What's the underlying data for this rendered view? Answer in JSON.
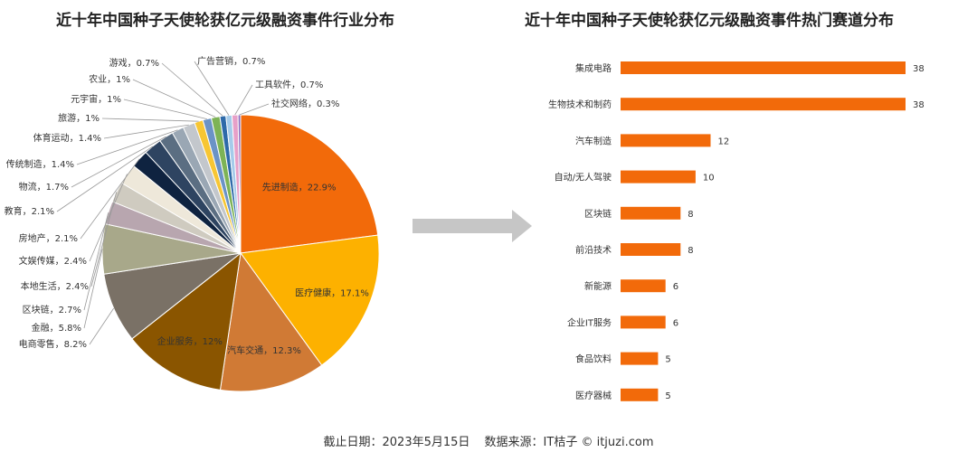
{
  "left_title": "近十年中国种子天使轮获亿元级融资事件行业分布",
  "right_title": "近十年中国种子天使轮获亿元级融资事件热门赛道分布",
  "footer": {
    "cutoff": "截止日期：2023年5月15日",
    "source": "数据来源：IT桔子 © itjuzi.com"
  },
  "chart_data": [
    {
      "type": "pie",
      "title": "近十年中国种子天使轮获亿元级融资事件行业分布",
      "unit": "%",
      "slices": [
        {
          "label": "先进制造",
          "value": 22.9,
          "color": "#F26A0A"
        },
        {
          "label": "医疗健康",
          "value": 17.1,
          "color": "#FDB100"
        },
        {
          "label": "汽车交通",
          "value": 12.3,
          "color": "#D07A35"
        },
        {
          "label": "企业服务",
          "value": 12,
          "color": "#8A5500"
        },
        {
          "label": "电商零售",
          "value": 8.2,
          "color": "#7A7166"
        },
        {
          "label": "金融",
          "value": 5.8,
          "color": "#A8A88A"
        },
        {
          "label": "区块链",
          "value": 2.7,
          "color": "#B8A6AF"
        },
        {
          "label": "本地生活",
          "value": 2.4,
          "color": "#CFCBC0"
        },
        {
          "label": "文娱传媒",
          "value": 2.4,
          "color": "#EEE8DA"
        },
        {
          "label": "房地产",
          "value": 2.1,
          "color": "#0F2340"
        },
        {
          "label": "教育",
          "value": 2.1,
          "color": "#2E4461"
        },
        {
          "label": "物流",
          "value": 1.7,
          "color": "#5B6E82"
        },
        {
          "label": "传统制造",
          "value": 1.4,
          "color": "#9AA7B4"
        },
        {
          "label": "体育运动",
          "value": 1.4,
          "color": "#C3C7CC"
        },
        {
          "label": "旅游",
          "value": 1,
          "color": "#F7C634"
        },
        {
          "label": "元宇宙",
          "value": 1,
          "color": "#6B93C6"
        },
        {
          "label": "农业",
          "value": 1,
          "color": "#7DB356"
        },
        {
          "label": "游戏",
          "value": 0.7,
          "color": "#2E6AA9"
        },
        {
          "label": "广告营销",
          "value": 0.7,
          "color": "#A5CBEA"
        },
        {
          "label": "工具软件",
          "value": 0.7,
          "color": "#E7A0C8"
        },
        {
          "label": "社交网络",
          "value": 0.3,
          "color": "#8E6BBF"
        }
      ]
    },
    {
      "type": "bar",
      "orientation": "horizontal",
      "title": "近十年中国种子天使轮获亿元级融资事件热门赛道分布",
      "categories": [
        "集成电路",
        "生物技术和制药",
        "汽车制造",
        "自动/无人驾驶",
        "区块链",
        "前沿技术",
        "新能源",
        "企业IT服务",
        "食品饮料",
        "医疗器械"
      ],
      "values": [
        38,
        38,
        12,
        10,
        8,
        8,
        6,
        6,
        5,
        5
      ],
      "xlim": [
        0,
        38
      ],
      "color": "#F26A0A"
    }
  ]
}
